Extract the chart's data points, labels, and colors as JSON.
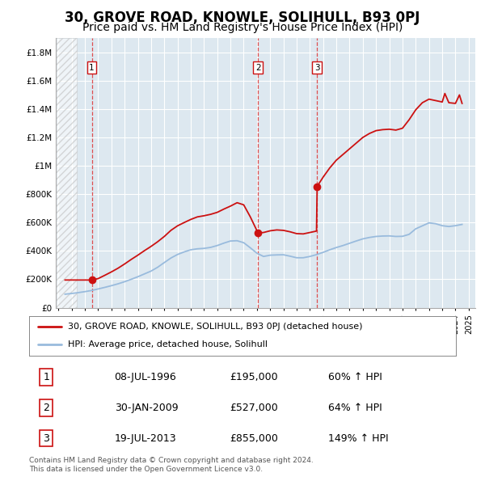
{
  "title": "30, GROVE ROAD, KNOWLE, SOLIHULL, B93 0PJ",
  "subtitle": "Price paid vs. HM Land Registry's House Price Index (HPI)",
  "ylim": [
    0,
    1900000
  ],
  "yticks": [
    0,
    200000,
    400000,
    600000,
    800000,
    1000000,
    1200000,
    1400000,
    1600000,
    1800000
  ],
  "ytick_labels": [
    "£0",
    "£200K",
    "£400K",
    "£600K",
    "£800K",
    "£1M",
    "£1.2M",
    "£1.4M",
    "£1.6M",
    "£1.8M"
  ],
  "xlim_start": 1993.8,
  "xlim_end": 2025.5,
  "title_fontsize": 12,
  "subtitle_fontsize": 10,
  "background_color": "#ffffff",
  "plot_bg_color": "#dde8f0",
  "hatch_region_end": 1995.4,
  "grid_color": "#ffffff",
  "hpi_line_color": "#99bbdd",
  "price_line_color": "#cc1111",
  "sale_marker_color": "#cc1111",
  "vline_color": "#dd3333",
  "transactions": [
    {
      "label": "1",
      "date_x": 1996.52,
      "price": 195000
    },
    {
      "label": "2",
      "date_x": 2009.08,
      "price": 527000
    },
    {
      "label": "3",
      "date_x": 2013.55,
      "price": 855000
    }
  ],
  "transaction_table": [
    {
      "num": "1",
      "date": "08-JUL-1996",
      "price": "£195,000",
      "hpi": "60% ↑ HPI"
    },
    {
      "num": "2",
      "date": "30-JAN-2009",
      "price": "£527,000",
      "hpi": "64% ↑ HPI"
    },
    {
      "num": "3",
      "date": "19-JUL-2013",
      "price": "£855,000",
      "hpi": "149% ↑ HPI"
    }
  ],
  "legend_line1": "30, GROVE ROAD, KNOWLE, SOLIHULL, B93 0PJ (detached house)",
  "legend_line2": "HPI: Average price, detached house, Solihull",
  "footnote": "Contains HM Land Registry data © Crown copyright and database right 2024.\nThis data is licensed under the Open Government Licence v3.0.",
  "hpi_data_x": [
    1994.5,
    1995.0,
    1995.5,
    1996.0,
    1996.5,
    1997.0,
    1997.5,
    1998.0,
    1998.5,
    1999.0,
    1999.5,
    2000.0,
    2000.5,
    2001.0,
    2001.5,
    2002.0,
    2002.5,
    2003.0,
    2003.5,
    2004.0,
    2004.5,
    2005.0,
    2005.5,
    2006.0,
    2006.5,
    2007.0,
    2007.5,
    2008.0,
    2008.5,
    2009.0,
    2009.5,
    2010.0,
    2010.5,
    2011.0,
    2011.5,
    2012.0,
    2012.5,
    2013.0,
    2013.5,
    2014.0,
    2014.5,
    2015.0,
    2015.5,
    2016.0,
    2016.5,
    2017.0,
    2017.5,
    2018.0,
    2018.5,
    2019.0,
    2019.5,
    2020.0,
    2020.5,
    2021.0,
    2021.5,
    2022.0,
    2022.5,
    2023.0,
    2023.5,
    2024.0,
    2024.5
  ],
  "hpi_data_y": [
    95000,
    100000,
    106000,
    113000,
    121000,
    132000,
    143000,
    155000,
    168000,
    183000,
    200000,
    218000,
    238000,
    258000,
    285000,
    318000,
    350000,
    375000,
    393000,
    408000,
    415000,
    418000,
    425000,
    438000,
    455000,
    470000,
    472000,
    458000,
    422000,
    384000,
    361000,
    370000,
    372000,
    373000,
    363000,
    352000,
    352000,
    361000,
    374000,
    390000,
    408000,
    424000,
    438000,
    454000,
    470000,
    485000,
    495000,
    502000,
    505000,
    506000,
    502000,
    503000,
    517000,
    556000,
    577000,
    598000,
    592000,
    578000,
    572000,
    578000,
    587000
  ],
  "price_line_x": [
    1994.5,
    1995.0,
    1995.5,
    1996.0,
    1996.52,
    1997.0,
    1997.5,
    1998.0,
    1998.5,
    1999.0,
    1999.5,
    2000.0,
    2000.5,
    2001.0,
    2001.5,
    2002.0,
    2002.5,
    2003.0,
    2003.5,
    2004.0,
    2004.5,
    2005.0,
    2005.5,
    2006.0,
    2006.5,
    2007.0,
    2007.5,
    2008.0,
    2008.5,
    2009.08,
    2009.5,
    2010.0,
    2010.5,
    2011.0,
    2011.5,
    2012.0,
    2012.5,
    2013.0,
    2013.5,
    2013.55,
    2014.0,
    2014.5,
    2015.0,
    2015.5,
    2016.0,
    2016.5,
    2017.0,
    2017.5,
    2018.0,
    2018.5,
    2019.0,
    2019.5,
    2020.0,
    2020.5,
    2021.0,
    2021.5,
    2022.0,
    2022.5,
    2023.0,
    2023.2,
    2023.5,
    2024.0,
    2024.3,
    2024.5
  ],
  "price_line_y": [
    195000,
    195000,
    195000,
    195000,
    195000,
    205000,
    228000,
    252000,
    278000,
    308000,
    340000,
    370000,
    402000,
    432000,
    465000,
    502000,
    545000,
    577000,
    600000,
    622000,
    640000,
    648000,
    658000,
    672000,
    695000,
    716000,
    740000,
    725000,
    640000,
    527000,
    530000,
    542000,
    548000,
    545000,
    535000,
    522000,
    520000,
    530000,
    540000,
    855000,
    920000,
    985000,
    1040000,
    1080000,
    1120000,
    1160000,
    1200000,
    1228000,
    1248000,
    1255000,
    1258000,
    1252000,
    1265000,
    1325000,
    1395000,
    1445000,
    1470000,
    1460000,
    1450000,
    1510000,
    1445000,
    1440000,
    1500000,
    1440000
  ]
}
